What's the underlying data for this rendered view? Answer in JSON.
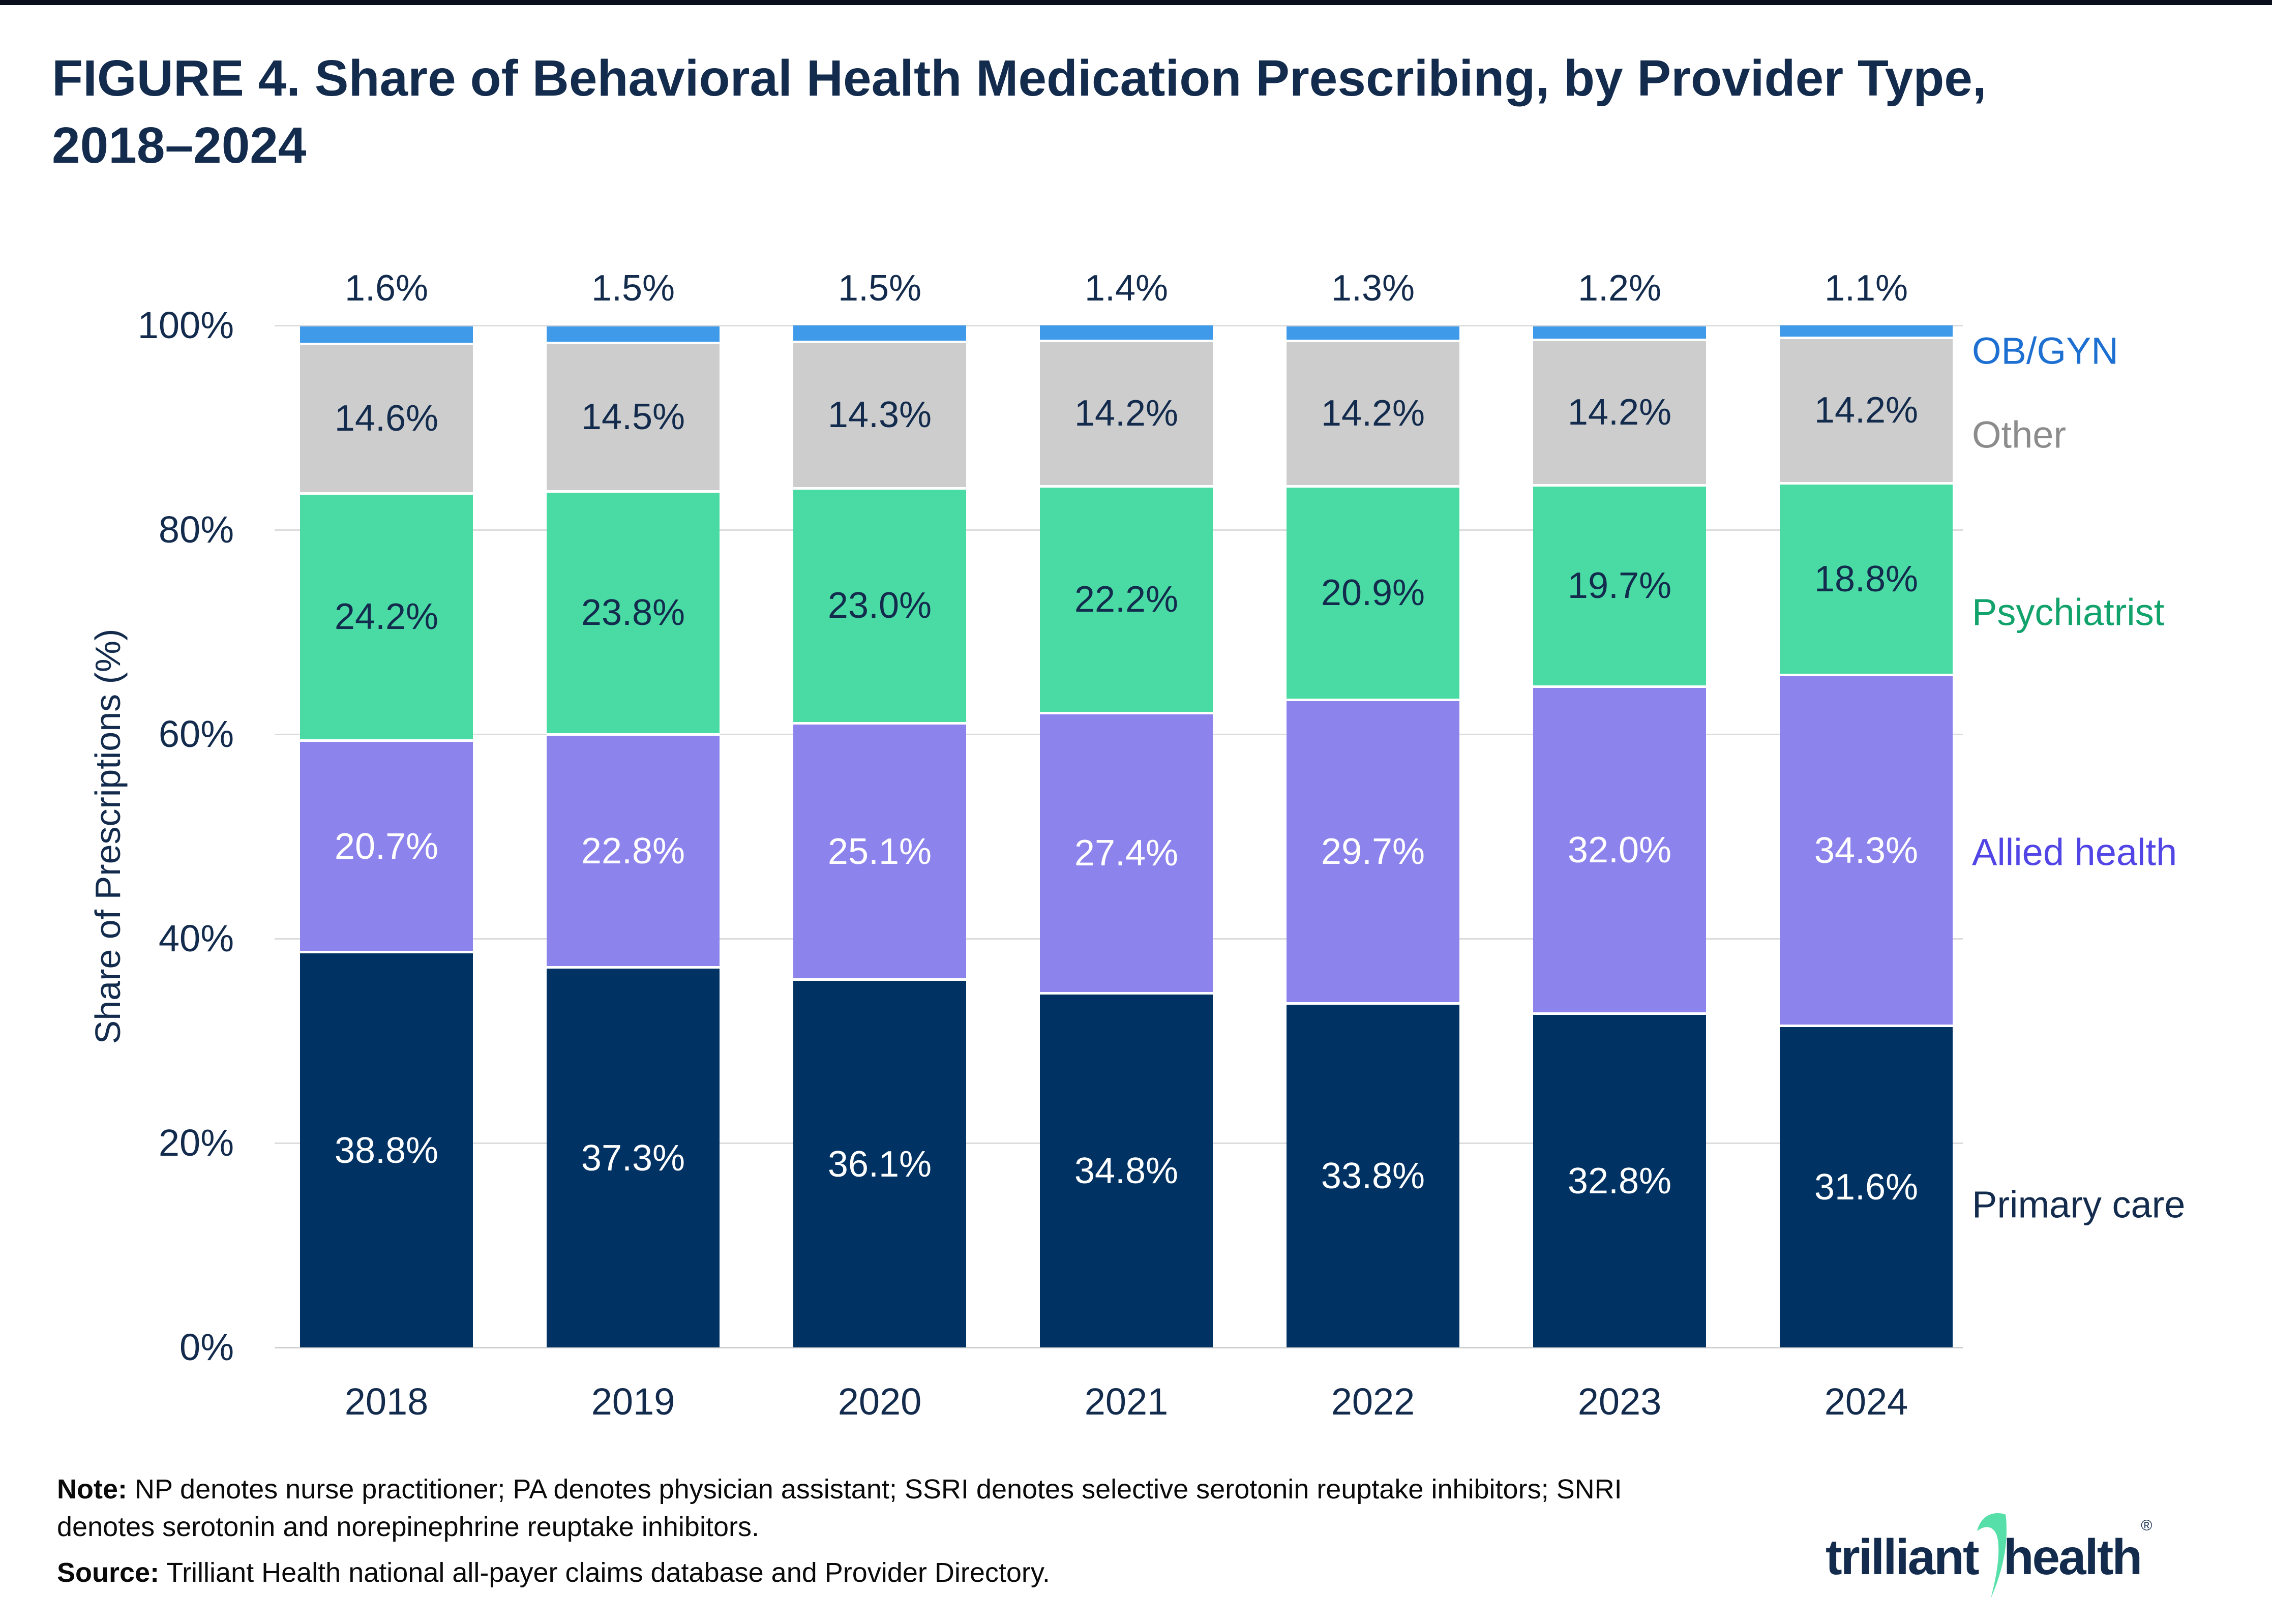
{
  "title": {
    "line1": "FIGURE 4. Share of Behavioral Health Medication Prescribing, by Provider Type,",
    "line2": "2018–2024"
  },
  "chart_data": {
    "type": "bar",
    "stacked": true,
    "title": "FIGURE 4. Share of Behavioral Health Medication Prescribing, by Provider Type, 2018–2024",
    "categories": [
      "2018",
      "2019",
      "2020",
      "2021",
      "2022",
      "2023",
      "2024"
    ],
    "series": [
      {
        "name": "Primary care",
        "color": "#003263",
        "label_color": "#ffffff",
        "values": [
          38.8,
          37.3,
          36.1,
          34.8,
          33.8,
          32.8,
          31.6
        ],
        "labels": [
          "38.8%",
          "37.3%",
          "36.1%",
          "34.8%",
          "33.8%",
          "32.8%",
          "31.6%"
        ]
      },
      {
        "name": "Allied health",
        "color": "#8d83ec",
        "label_color": "#ffffff",
        "values": [
          20.7,
          22.8,
          25.1,
          27.4,
          29.7,
          32.0,
          34.3
        ],
        "labels": [
          "20.7%",
          "22.8%",
          "25.1%",
          "27.4%",
          "29.7%",
          "32.0%",
          "34.3%"
        ]
      },
      {
        "name": "Psychiatrist",
        "color": "#4adba5",
        "label_color": "#132b4d",
        "values": [
          24.2,
          23.8,
          23.0,
          22.2,
          20.9,
          19.7,
          18.8
        ],
        "labels": [
          "24.2%",
          "23.8%",
          "23.0%",
          "22.2%",
          "20.9%",
          "19.7%",
          "18.8%"
        ]
      },
      {
        "name": "Other",
        "color": "#cdcdcd",
        "label_color": "#132b4d",
        "values": [
          14.6,
          14.5,
          14.3,
          14.2,
          14.2,
          14.2,
          14.2
        ],
        "labels": [
          "14.6%",
          "14.5%",
          "14.3%",
          "14.2%",
          "14.2%",
          "14.2%",
          "14.2%"
        ]
      },
      {
        "name": "OB/GYN",
        "color": "#3f9bea",
        "label_color": "#132b4d",
        "label_position": "above",
        "values": [
          1.6,
          1.5,
          1.5,
          1.4,
          1.3,
          1.2,
          1.1
        ],
        "labels": [
          "1.6%",
          "1.5%",
          "1.5%",
          "1.4%",
          "1.3%",
          "1.2%",
          "1.1%"
        ]
      }
    ],
    "ylabel": "Share of Prescriptions (%)",
    "yticks": [
      "100%",
      "80%",
      "60%",
      "40%",
      "20%",
      "0%"
    ],
    "ylim": [
      0,
      100
    ],
    "grid": true,
    "legend_position": "right",
    "legend": [
      {
        "label": "OB/GYN",
        "color": "#1d70d2"
      },
      {
        "label": "Other",
        "color": "#8c8c8c"
      },
      {
        "label": "Psychiatrist",
        "color": "#12a26b"
      },
      {
        "label": "Allied health",
        "color": "#5145e6"
      },
      {
        "label": "Primary care",
        "color": "#132b4d"
      }
    ]
  },
  "note": {
    "label": "Note:",
    "line1": "NP denotes nurse practitioner; PA denotes physician assistant; SSRI denotes selective serotonin reuptake inhibitors; SNRI",
    "line2": "denotes serotonin and norepinephrine reuptake inhibitors."
  },
  "source": {
    "label": "Source:",
    "text": "Trilliant Health national all-payer claims database and Provider Directory."
  },
  "logo": {
    "part1": "trilliant",
    "part2": "health",
    "registered": "®"
  }
}
